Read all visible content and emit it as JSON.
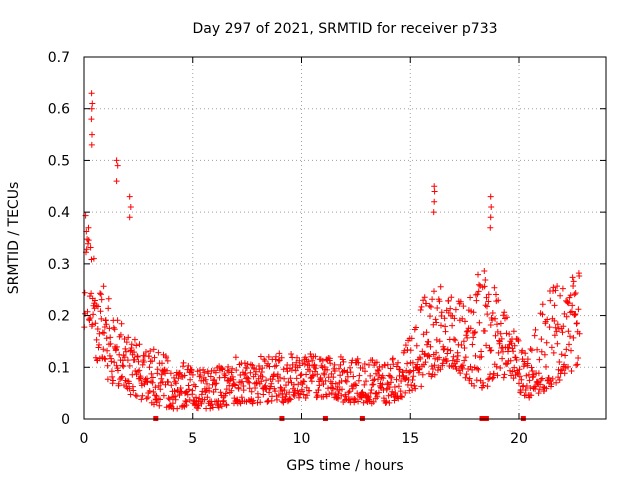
{
  "chart_data": {
    "type": "scatter",
    "title": "Day 297 of 2021, SRMTID for receiver p733",
    "xlabel": "GPS time / hours",
    "ylabel": "SRMTID / TECUs",
    "xlim": [
      0,
      24
    ],
    "ylim": [
      0,
      0.7
    ],
    "grid": true,
    "marker": "+",
    "color": "#ff0000",
    "x_ticks": [
      0,
      5,
      10,
      15,
      20
    ],
    "x_tick_labels": [
      "0",
      "5",
      "10",
      "15",
      "20"
    ],
    "y_ticks": [
      0,
      0.1,
      0.2,
      0.3,
      0.4,
      0.5,
      0.6,
      0.7
    ],
    "y_tick_labels": [
      "0",
      "0.1",
      "0.2",
      "0.3",
      "0.4",
      "0.5",
      "0.6",
      "0.7"
    ],
    "spike_points": [
      {
        "x": 0.35,
        "y": 0.63
      },
      {
        "x": 0.38,
        "y": 0.61
      },
      {
        "x": 0.36,
        "y": 0.6
      },
      {
        "x": 0.34,
        "y": 0.58
      },
      {
        "x": 0.37,
        "y": 0.55
      },
      {
        "x": 0.36,
        "y": 0.53
      },
      {
        "x": 1.5,
        "y": 0.5
      },
      {
        "x": 1.55,
        "y": 0.49
      },
      {
        "x": 1.5,
        "y": 0.46
      },
      {
        "x": 2.1,
        "y": 0.43
      },
      {
        "x": 2.15,
        "y": 0.41
      },
      {
        "x": 2.1,
        "y": 0.39
      },
      {
        "x": 16.1,
        "y": 0.45
      },
      {
        "x": 16.12,
        "y": 0.44
      },
      {
        "x": 16.1,
        "y": 0.42
      },
      {
        "x": 16.08,
        "y": 0.4
      },
      {
        "x": 18.7,
        "y": 0.43
      },
      {
        "x": 18.72,
        "y": 0.41
      },
      {
        "x": 18.7,
        "y": 0.39
      },
      {
        "x": 18.68,
        "y": 0.37
      }
    ],
    "envelope": {
      "hours": [
        0,
        0.5,
        1,
        1.5,
        2,
        2.5,
        3,
        4,
        5,
        6,
        7,
        8,
        9,
        10,
        11,
        12,
        13,
        14,
        14.5,
        15,
        15.5,
        16,
        16.5,
        17,
        17.5,
        18,
        18.5,
        19,
        19.5,
        20,
        20.5,
        21,
        21.5,
        22,
        22.5,
        23
      ],
      "low": [
        0.18,
        0.12,
        0.08,
        0.06,
        0.05,
        0.04,
        0.03,
        0.02,
        0.02,
        0.02,
        0.03,
        0.03,
        0.03,
        0.04,
        0.04,
        0.03,
        0.03,
        0.03,
        0.04,
        0.05,
        0.06,
        0.08,
        0.1,
        0.1,
        0.08,
        0.06,
        0.06,
        0.08,
        0.08,
        0.05,
        0.04,
        0.05,
        0.06,
        0.08,
        0.08,
        0.15
      ],
      "high": [
        0.42,
        0.3,
        0.25,
        0.2,
        0.18,
        0.15,
        0.14,
        0.12,
        0.1,
        0.1,
        0.12,
        0.12,
        0.13,
        0.13,
        0.12,
        0.12,
        0.12,
        0.11,
        0.13,
        0.16,
        0.22,
        0.28,
        0.25,
        0.24,
        0.22,
        0.3,
        0.3,
        0.24,
        0.2,
        0.15,
        0.14,
        0.22,
        0.26,
        0.27,
        0.28,
        0.3
      ]
    },
    "gap_markers_x": [
      3.3,
      9.1,
      11.1,
      12.8,
      18.3,
      18.5,
      20.2
    ]
  }
}
